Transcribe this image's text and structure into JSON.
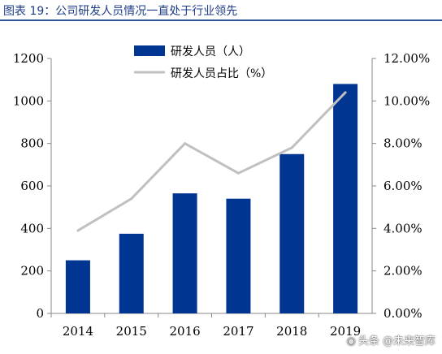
{
  "title": "图表 19：公司研发人员情况一直处于行业领先",
  "watermark": "头条 @未来智库",
  "watermark_icon": "toutiao-logo-icon",
  "colors": {
    "bar": "#003591",
    "line": "#c0c0c0",
    "title": "#1f3c88",
    "rule": "#2f5597"
  },
  "chart_data": {
    "type": "bar",
    "categories": [
      "2014",
      "2015",
      "2016",
      "2017",
      "2018",
      "2019"
    ],
    "series": [
      {
        "name": "研发人员（人）",
        "type": "bar",
        "axis": "left",
        "values": [
          250,
          375,
          565,
          540,
          750,
          1080
        ]
      },
      {
        "name": "研发人员占比（%）",
        "type": "line",
        "axis": "right",
        "values": [
          3.9,
          5.4,
          8.0,
          6.6,
          7.8,
          10.4
        ]
      }
    ],
    "y_left": {
      "ticks": [
        "0",
        "200",
        "400",
        "600",
        "800",
        "1000",
        "1200"
      ],
      "ylim": [
        0,
        1200
      ]
    },
    "y_right": {
      "ticks": [
        "0.00%",
        "2.00%",
        "4.00%",
        "6.00%",
        "8.00%",
        "10.00%",
        "12.00%"
      ],
      "ylim": [
        0,
        12
      ]
    },
    "grid": false,
    "legend": "top-center"
  }
}
